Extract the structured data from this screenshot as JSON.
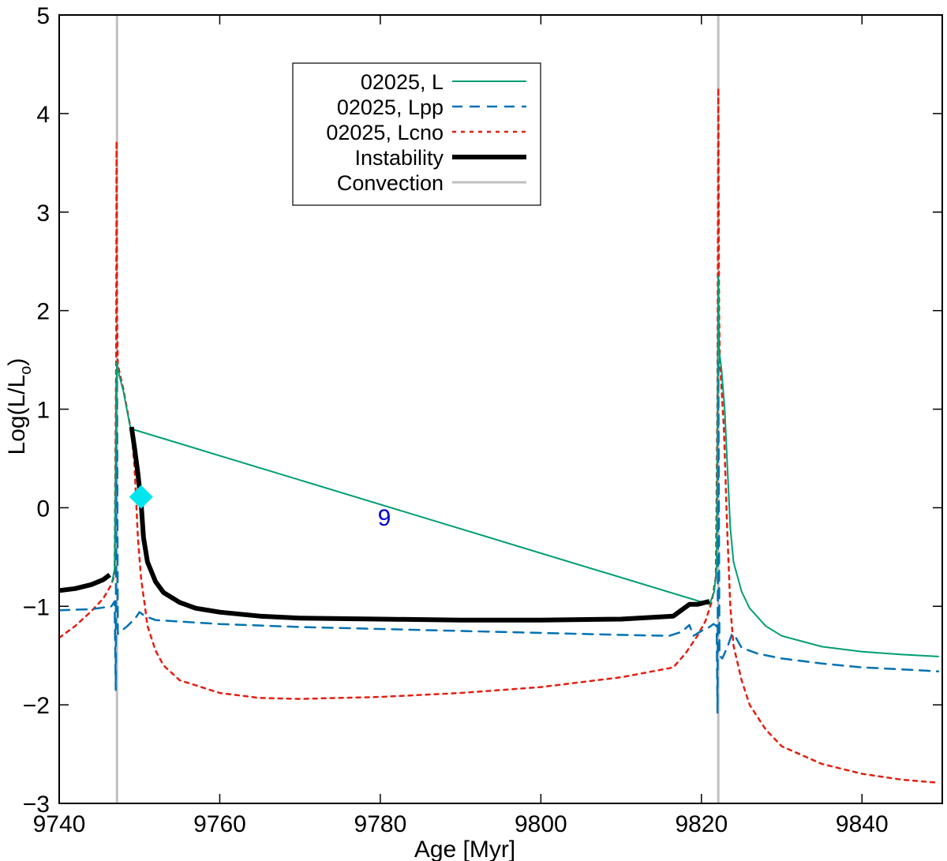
{
  "chart_data": {
    "type": "line",
    "xlabel": "Age [Myr]",
    "ylabel_main": "Log(L/L",
    "ylabel_sub": "o",
    "ylabel_close": ")",
    "xlim": [
      9740,
      9850
    ],
    "ylim": [
      -3,
      5
    ],
    "x_ticks": [
      {
        "value": 9740,
        "label": "9740"
      },
      {
        "value": 9760,
        "label": "9760"
      },
      {
        "value": 9780,
        "label": "9780"
      },
      {
        "value": 9800,
        "label": "9800"
      },
      {
        "value": 9820,
        "label": "9820"
      },
      {
        "value": 9840,
        "label": "9840"
      }
    ],
    "y_ticks": [
      {
        "value": -3,
        "label": "−3"
      },
      {
        "value": -2,
        "label": "−2"
      },
      {
        "value": -1,
        "label": "−1"
      },
      {
        "value": 0,
        "label": "0"
      },
      {
        "value": 1,
        "label": "1"
      },
      {
        "value": 2,
        "label": "2"
      },
      {
        "value": 3,
        "label": "3"
      },
      {
        "value": 4,
        "label": "4"
      },
      {
        "value": 5,
        "label": "5"
      }
    ],
    "legend_position": "top-center",
    "legend": [
      {
        "key": "L",
        "label": "02025, L",
        "color": "#009e73",
        "style": "solid",
        "width": 2
      },
      {
        "key": "Lpp",
        "label": "02025, Lpp",
        "color": "#0072b2",
        "style": "dashed",
        "width": 2.5
      },
      {
        "key": "Lcno",
        "label": "02025, Lcno",
        "color": "#e51e10",
        "style": "dotted",
        "width": 2.5
      },
      {
        "key": "Instability",
        "label": "Instability",
        "color": "#000000",
        "style": "solid",
        "width": 6
      },
      {
        "key": "Convection",
        "label": "Convection",
        "color": "#c0c0c0",
        "style": "solid",
        "width": 3
      }
    ],
    "convection_lines": [
      9747.2,
      9822.1
    ],
    "series": [
      {
        "name": "02025, Lcno",
        "key": "Lcno",
        "points": [
          [
            9740,
            -1.32
          ],
          [
            9742,
            -1.2
          ],
          [
            9744,
            -1.05
          ],
          [
            9745.5,
            -0.92
          ],
          [
            9746.5,
            -0.78
          ],
          [
            9746.9,
            -0.68
          ],
          [
            9747.1,
            1.5
          ],
          [
            9747.15,
            3.72
          ],
          [
            9747.2,
            2.0
          ],
          [
            9747.3,
            1.45
          ],
          [
            9748.0,
            1.2
          ],
          [
            9748.8,
            0.85
          ],
          [
            9749.0,
            0.78
          ],
          [
            9749.4,
            0.4
          ],
          [
            9749.8,
            -0.3
          ],
          [
            9750.2,
            -0.72
          ],
          [
            9750.6,
            -0.95
          ],
          [
            9751.0,
            -1.2
          ],
          [
            9752,
            -1.45
          ],
          [
            9753,
            -1.6
          ],
          [
            9755,
            -1.75
          ],
          [
            9760,
            -1.88
          ],
          [
            9765,
            -1.93
          ],
          [
            9770,
            -1.94
          ],
          [
            9780,
            -1.92
          ],
          [
            9790,
            -1.88
          ],
          [
            9800,
            -1.82
          ],
          [
            9810,
            -1.72
          ],
          [
            9816.5,
            -1.62
          ],
          [
            9818,
            -1.48
          ],
          [
            9819.5,
            -1.3
          ],
          [
            9820.5,
            -1.15
          ],
          [
            9821.3,
            -0.95
          ],
          [
            9821.8,
            -0.7
          ],
          [
            9822.0,
            1.2
          ],
          [
            9822.1,
            4.26
          ],
          [
            9822.2,
            2.0
          ],
          [
            9822.3,
            1.5
          ],
          [
            9822.8,
            0.8
          ],
          [
            9823.2,
            -0.2
          ],
          [
            9823.6,
            -1.0
          ],
          [
            9824,
            -1.4
          ],
          [
            9825,
            -1.75
          ],
          [
            9826,
            -2.0
          ],
          [
            9828,
            -2.25
          ],
          [
            9830,
            -2.42
          ],
          [
            9835,
            -2.6
          ],
          [
            9840,
            -2.7
          ],
          [
            9845,
            -2.76
          ],
          [
            9849.5,
            -2.79
          ]
        ]
      },
      {
        "name": "02025, Lpp",
        "key": "Lpp",
        "points": [
          [
            9740,
            -1.04
          ],
          [
            9744,
            -1.03
          ],
          [
            9746.5,
            -1.0
          ],
          [
            9746.9,
            -0.95
          ],
          [
            9747.05,
            -1.85
          ],
          [
            9747.1,
            1.2
          ],
          [
            9747.2,
            1.35
          ],
          [
            9747.3,
            -1.28
          ],
          [
            9748.5,
            -1.2
          ],
          [
            9749.5,
            -1.12
          ],
          [
            9750.0,
            -1.06
          ],
          [
            9750.7,
            -1.1
          ],
          [
            9752,
            -1.14
          ],
          [
            9760,
            -1.18
          ],
          [
            9770,
            -1.21
          ],
          [
            9780,
            -1.23
          ],
          [
            9790,
            -1.25
          ],
          [
            9800,
            -1.27
          ],
          [
            9810,
            -1.29
          ],
          [
            9816,
            -1.3
          ],
          [
            9817.5,
            -1.26
          ],
          [
            9818.5,
            -1.19
          ],
          [
            9819.0,
            -1.3
          ],
          [
            9820,
            -1.25
          ],
          [
            9821,
            -1.21
          ],
          [
            9821.5,
            -1.18
          ],
          [
            9821.9,
            -1.2
          ],
          [
            9822.0,
            -2.08
          ],
          [
            9822.1,
            1.5
          ],
          [
            9822.25,
            -1.5
          ],
          [
            9822.6,
            -1.53
          ],
          [
            9823.3,
            -1.4
          ],
          [
            9823.8,
            -1.28
          ],
          [
            9824.3,
            -1.32
          ],
          [
            9825,
            -1.42
          ],
          [
            9827,
            -1.48
          ],
          [
            9830,
            -1.53
          ],
          [
            9835,
            -1.58
          ],
          [
            9840,
            -1.62
          ],
          [
            9845,
            -1.64
          ],
          [
            9849.5,
            -1.66
          ]
        ]
      },
      {
        "name": "02025, L",
        "key": "L",
        "points": [
          [
            9746.6,
            -0.75
          ],
          [
            9746.9,
            -0.62
          ],
          [
            9747.1,
            1.0
          ],
          [
            9747.2,
            1.48
          ],
          [
            9747.3,
            1.4
          ],
          [
            9748.0,
            1.18
          ],
          [
            9748.8,
            0.84
          ],
          [
            9749.0,
            0.8
          ],
          [
            9821.0,
            -0.98
          ],
          [
            9821.6,
            -0.85
          ],
          [
            9821.9,
            -0.6
          ],
          [
            9822.0,
            1.0
          ],
          [
            9822.1,
            2.35
          ],
          [
            9822.2,
            1.6
          ],
          [
            9822.5,
            1.4
          ],
          [
            9822.9,
            1.0
          ],
          [
            9823.3,
            0.3
          ],
          [
            9823.6,
            -0.2
          ],
          [
            9824,
            -0.55
          ],
          [
            9825,
            -0.85
          ],
          [
            9826,
            -1.02
          ],
          [
            9828,
            -1.2
          ],
          [
            9830,
            -1.3
          ],
          [
            9835,
            -1.41
          ],
          [
            9840,
            -1.46
          ],
          [
            9845,
            -1.49
          ],
          [
            9849.5,
            -1.51
          ]
        ]
      },
      {
        "name": "Instability",
        "key": "Instability",
        "segments": [
          [
            [
              9740,
              -0.84
            ],
            [
              9742,
              -0.82
            ],
            [
              9744,
              -0.78
            ],
            [
              9745.5,
              -0.73
            ],
            [
              9746.3,
              -0.68
            ]
          ],
          [
            [
              9749.0,
              0.82
            ],
            [
              9749.4,
              0.6
            ],
            [
              9749.8,
              0.35
            ],
            [
              9750.2,
              0.05
            ],
            [
              9750.5,
              -0.3
            ],
            [
              9751.0,
              -0.55
            ],
            [
              9752,
              -0.75
            ],
            [
              9753,
              -0.86
            ],
            [
              9755,
              -0.96
            ],
            [
              9757,
              -1.02
            ],
            [
              9760,
              -1.06
            ],
            [
              9765,
              -1.1
            ],
            [
              9770,
              -1.12
            ],
            [
              9780,
              -1.13
            ],
            [
              9790,
              -1.14
            ],
            [
              9800,
              -1.14
            ],
            [
              9810,
              -1.13
            ],
            [
              9816.5,
              -1.1
            ],
            [
              9817.5,
              -1.04
            ],
            [
              9818.5,
              -0.98
            ],
            [
              9819.5,
              -0.98
            ],
            [
              9821,
              -0.95
            ]
          ]
        ]
      }
    ],
    "marker": {
      "x": 9750.2,
      "y": 0.11,
      "color": "#00e5ee",
      "shape": "diamond"
    },
    "annotation": {
      "x": 9780.5,
      "y": -0.1,
      "text": "9"
    }
  }
}
